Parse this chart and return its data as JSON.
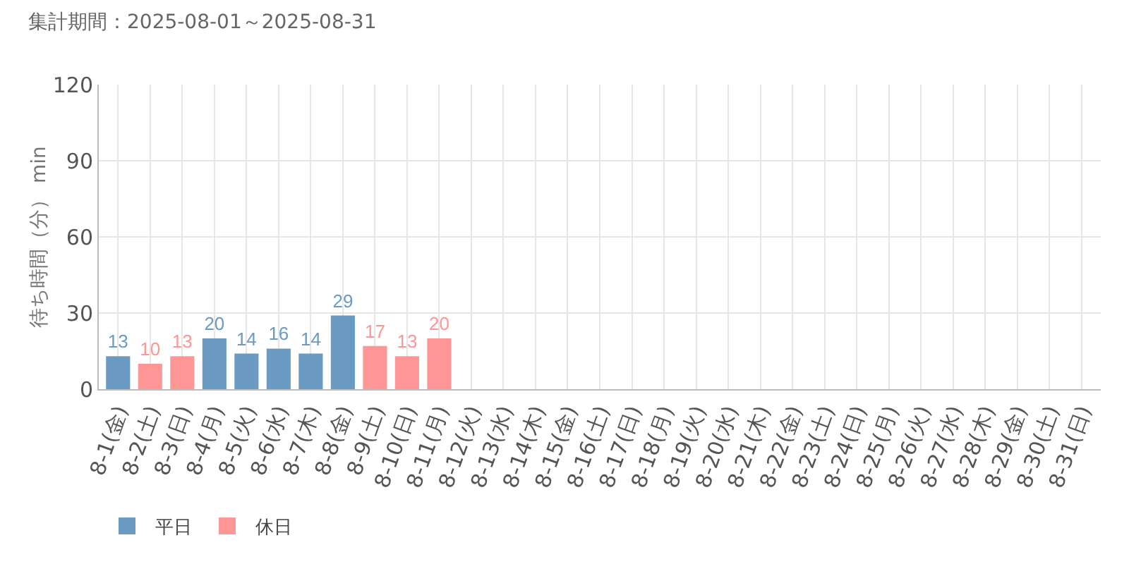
{
  "chart_data": {
    "type": "bar",
    "title": "集計期間：2025-08-01～2025-08-31",
    "ylabel": "待ち時間（分） min",
    "categories": [
      "8-1(金)",
      "8-2(土)",
      "8-3(日)",
      "8-4(月)",
      "8-5(火)",
      "8-6(水)",
      "8-7(木)",
      "8-8(金)",
      "8-9(土)",
      "8-10(日)",
      "8-11(月)",
      "8-12(火)",
      "8-13(水)",
      "8-14(木)",
      "8-15(金)",
      "8-16(土)",
      "8-17(日)",
      "8-18(月)",
      "8-19(火)",
      "8-20(水)",
      "8-21(木)",
      "8-22(金)",
      "8-23(土)",
      "8-24(日)",
      "8-25(月)",
      "8-26(火)",
      "8-27(水)",
      "8-28(木)",
      "8-29(金)",
      "8-30(土)",
      "8-31(日)"
    ],
    "series": [
      {
        "name": "平日",
        "color": "#6b9bc3",
        "values": [
          13,
          null,
          null,
          20,
          14,
          16,
          14,
          29,
          null,
          null,
          null,
          null,
          null,
          null,
          null,
          null,
          null,
          null,
          null,
          null,
          null,
          null,
          null,
          null,
          null,
          null,
          null,
          null,
          null,
          null,
          null
        ]
      },
      {
        "name": "休日",
        "color": "#ff9696",
        "values": [
          null,
          10,
          13,
          null,
          null,
          null,
          null,
          null,
          17,
          13,
          20,
          null,
          null,
          null,
          null,
          null,
          null,
          null,
          null,
          null,
          null,
          null,
          null,
          null,
          null,
          null,
          null,
          null,
          null,
          null,
          null
        ]
      }
    ],
    "ylim": [
      0,
      120
    ],
    "yticks": [
      0,
      30,
      60,
      90,
      120
    ],
    "grid": true,
    "legend": "bottom left",
    "data_labels": true
  }
}
